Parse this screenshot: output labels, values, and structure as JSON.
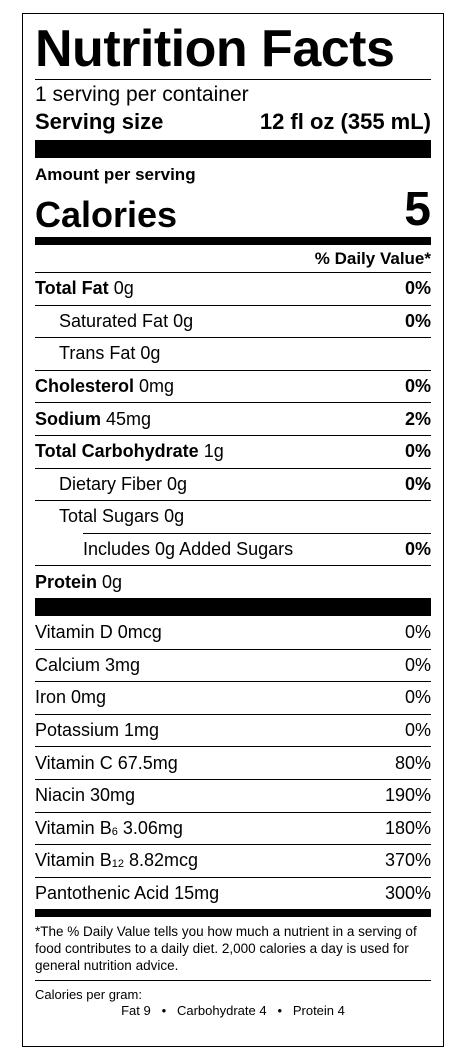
{
  "title": "Nutrition Facts",
  "servings_per_container": "1 serving per container",
  "serving_size_label": "Serving size",
  "serving_size_value": "12 fl oz (355 mL)",
  "amount_per_serving": "Amount per serving",
  "calories_label": "Calories",
  "calories_value": "5",
  "daily_value_header": "% Daily Value*",
  "nutrients": [
    {
      "name": "Total Fat",
      "amount": "0g",
      "dv": "0%"
    },
    {
      "name": "Saturated Fat",
      "amount": "0g",
      "dv": "0%"
    },
    {
      "name": "Trans Fat",
      "amount": "0g",
      "dv": ""
    },
    {
      "name": "Cholesterol",
      "amount": "0mg",
      "dv": "0%"
    },
    {
      "name": "Sodium",
      "amount": "45mg",
      "dv": "2%"
    },
    {
      "name": "Total Carbohydrate",
      "amount": "1g",
      "dv": "0%"
    },
    {
      "name": "Dietary Fiber",
      "amount": "0g",
      "dv": "0%"
    },
    {
      "name": "Total Sugars",
      "amount": "0g",
      "dv": ""
    },
    {
      "name": "Includes 0g Added Sugars",
      "amount": "",
      "dv": "0%"
    },
    {
      "name": "Protein",
      "amount": "0g",
      "dv": ""
    }
  ],
  "vitamins": [
    {
      "name": "Vitamin D 0mcg",
      "dv": "0%"
    },
    {
      "name": "Calcium 3mg",
      "dv": "0%"
    },
    {
      "name": "Iron 0mg",
      "dv": "0%"
    },
    {
      "name": "Potassium 1mg",
      "dv": "0%"
    },
    {
      "name": "Vitamin C 67.5mg",
      "dv": "80%"
    },
    {
      "name": "Niacin 30mg",
      "dv": "190%"
    },
    {
      "name_prefix": "Vitamin B",
      "name_sub": "6",
      "name_suffix": " 3.06mg",
      "dv": "180%"
    },
    {
      "name_prefix": "Vitamin B",
      "name_sub": "12",
      "name_suffix": " 8.82mcg",
      "dv": "370%"
    },
    {
      "name": "Pantothenic Acid 15mg",
      "dv": "300%"
    }
  ],
  "footnote": "*The % Daily Value tells you how much a nutrient in a serving of food contributes to a daily diet. 2,000 calories a day is used for general nutrition advice.",
  "calories_per_gram_label": "Calories per gram:",
  "calories_per_gram": {
    "fat": "Fat 9",
    "carbohydrate": "Carbohydrate 4",
    "protein": "Protein 4",
    "separator": "•"
  }
}
